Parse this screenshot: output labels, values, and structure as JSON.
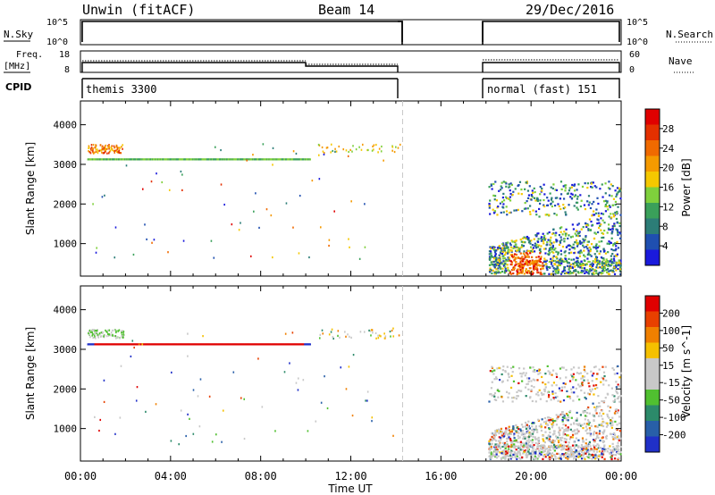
{
  "header": {
    "station": "Unwin (fitACF)",
    "beam": "Beam 14",
    "date": "29/Dec/2016"
  },
  "strips": {
    "nsky_label": "N.Sky",
    "nsky_ticks": [
      "10^5",
      "10^0"
    ],
    "nsearch_label": "N.Search",
    "nsearch_ticks": [
      "10^5",
      "10^0"
    ],
    "freq_label_line1": "Freq.",
    "freq_label_line2": "[MHz]",
    "freq_ticks": [
      "18",
      "8"
    ],
    "nave_label": "Nave",
    "nave_ticks": [
      "60",
      "0"
    ],
    "cpid_label": "CPID",
    "cpid_segments": [
      {
        "text": "themis 3300",
        "start_hour": 0,
        "end_hour": 14.3
      },
      {
        "text": "normal (fast) 151",
        "start_hour": 18,
        "end_hour": 24
      }
    ]
  },
  "chart_data": [
    {
      "type": "scatter",
      "title": "",
      "xlabel": "Time UT",
      "ylabel": "Slant Range [km]",
      "xlim": [
        0,
        24
      ],
      "ylim": [
        180,
        4600
      ],
      "x_tick_labels": [
        "00:00",
        "04:00",
        "08:00",
        "12:00",
        "16:00",
        "20:00",
        "00:00"
      ],
      "y_ticks": [
        1000,
        2000,
        3000,
        4000
      ],
      "y_tick_labels": [
        "1000",
        "2000",
        "3000",
        "4000"
      ],
      "data_gap_marker_hour": 14.3,
      "parameter": "Power",
      "colorbar_label": "Power [dB]",
      "colorbar_ticks": [
        "28",
        "24",
        "20",
        "16",
        "12",
        "8",
        "4"
      ],
      "colorbar_colors": [
        "#1a1adc",
        "#1f4fb0",
        "#2c7d77",
        "#3aa05a",
        "#7fd03c",
        "#f5c800",
        "#f59a00",
        "#f06a00",
        "#e43000",
        "#e00000"
      ]
    },
    {
      "type": "scatter",
      "title": "",
      "xlabel": "Time UT",
      "ylabel": "Slant Range [km]",
      "xlim": [
        0,
        24
      ],
      "ylim": [
        180,
        4600
      ],
      "x_tick_labels": [
        "00:00",
        "04:00",
        "08:00",
        "12:00",
        "16:00",
        "20:00",
        "00:00"
      ],
      "y_ticks": [
        1000,
        2000,
        3000,
        4000
      ],
      "y_tick_labels": [
        "1000",
        "2000",
        "3000",
        "4000"
      ],
      "data_gap_marker_hour": 14.3,
      "parameter": "Velocity",
      "colorbar_label": "Velocity [m s^-1]",
      "colorbar_ticks": [
        "200",
        "100",
        "50",
        "15",
        "-15",
        "-50",
        "-100",
        "-200"
      ],
      "colorbar_colors": [
        "#2030c8",
        "#285fa8",
        "#2c8a6a",
        "#50c030",
        "#c8c8c8",
        "#c8c8c8",
        "#f5c000",
        "#f08000",
        "#e84000",
        "#e00000"
      ]
    }
  ]
}
